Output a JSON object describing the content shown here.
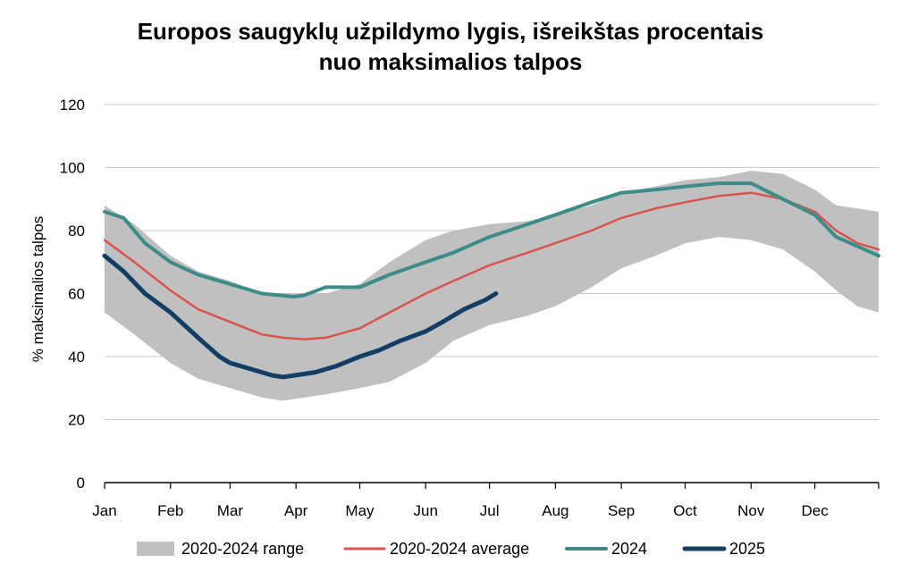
{
  "chart_data": {
    "type": "line",
    "title_lines": [
      "Europos saugyklų užpildymo lygis, išreikštas procentais",
      "nuo maksimalios talpos"
    ],
    "ylabel": "% maksimalios talpos",
    "xlabel": "",
    "ylim": [
      0,
      120
    ],
    "yticks": [
      0,
      20,
      40,
      60,
      80,
      100,
      120
    ],
    "xlim": [
      1,
      365
    ],
    "month_ticks": [
      {
        "label": "Jan",
        "day": 1
      },
      {
        "label": "Feb",
        "day": 32
      },
      {
        "label": "Mar",
        "day": 60
      },
      {
        "label": "Apr",
        "day": 91
      },
      {
        "label": "May",
        "day": 121
      },
      {
        "label": "Jun",
        "day": 152
      },
      {
        "label": "Jul",
        "day": 182
      },
      {
        "label": "Aug",
        "day": 213
      },
      {
        "label": "Sep",
        "day": 244
      },
      {
        "label": "Oct",
        "day": 274
      },
      {
        "label": "Nov",
        "day": 305
      },
      {
        "label": "Dec",
        "day": 335
      }
    ],
    "grid": true,
    "legend_position": "bottom",
    "range": {
      "name": "2020-2024 range",
      "color": "#c0c0c0",
      "x": [
        1,
        15,
        32,
        45,
        60,
        75,
        85,
        95,
        105,
        121,
        135,
        152,
        165,
        182,
        200,
        213,
        230,
        244,
        260,
        274,
        290,
        305,
        320,
        335,
        345,
        355,
        365
      ],
      "high": [
        88,
        82,
        72,
        67,
        64,
        60,
        60,
        60,
        60,
        63,
        70,
        77,
        80,
        82,
        83,
        85,
        88,
        92,
        94,
        96,
        97,
        99,
        98,
        93,
        88,
        87,
        86
      ],
      "low": [
        54,
        47,
        38,
        33,
        30,
        27,
        26,
        27,
        28,
        30,
        32,
        38,
        45,
        50,
        53,
        56,
        62,
        68,
        72,
        76,
        78,
        77,
        74,
        67,
        61,
        56,
        54
      ]
    },
    "series": [
      {
        "name": "2020-2024 average",
        "color": "#d9534f",
        "width": 2.5,
        "x": [
          1,
          15,
          32,
          45,
          60,
          75,
          85,
          95,
          105,
          121,
          135,
          152,
          165,
          182,
          200,
          213,
          230,
          244,
          260,
          274,
          290,
          305,
          320,
          335,
          345,
          355,
          365
        ],
        "values": [
          77,
          70,
          61,
          55,
          51,
          47,
          46,
          45.5,
          46,
          49,
          54,
          60,
          64,
          69,
          73,
          76,
          80,
          84,
          87,
          89,
          91,
          92,
          90,
          86,
          80,
          76,
          74
        ]
      },
      {
        "name": "2024",
        "color": "#3d8c89",
        "width": 4,
        "x": [
          1,
          10,
          20,
          32,
          45,
          60,
          75,
          90,
          95,
          105,
          121,
          135,
          152,
          165,
          182,
          200,
          213,
          230,
          244,
          260,
          274,
          290,
          305,
          320,
          335,
          345,
          355,
          365
        ],
        "values": [
          86,
          84,
          76,
          70,
          66,
          63,
          60,
          59,
          59.5,
          62,
          62,
          66,
          70,
          73,
          78,
          82,
          85,
          89,
          92,
          93,
          94,
          95,
          95,
          90,
          85,
          78,
          75,
          72
        ]
      },
      {
        "name": "2025",
        "color": "#123e66",
        "width": 5,
        "x": [
          1,
          10,
          20,
          32,
          45,
          55,
          60,
          70,
          80,
          85,
          90,
          100,
          110,
          121,
          130,
          140,
          152,
          160,
          170,
          180,
          185
        ],
        "values": [
          72,
          67,
          60,
          54,
          46,
          40,
          38,
          36,
          34,
          33.5,
          34,
          35,
          37,
          40,
          42,
          45,
          48,
          51,
          55,
          58,
          60
        ]
      }
    ]
  }
}
